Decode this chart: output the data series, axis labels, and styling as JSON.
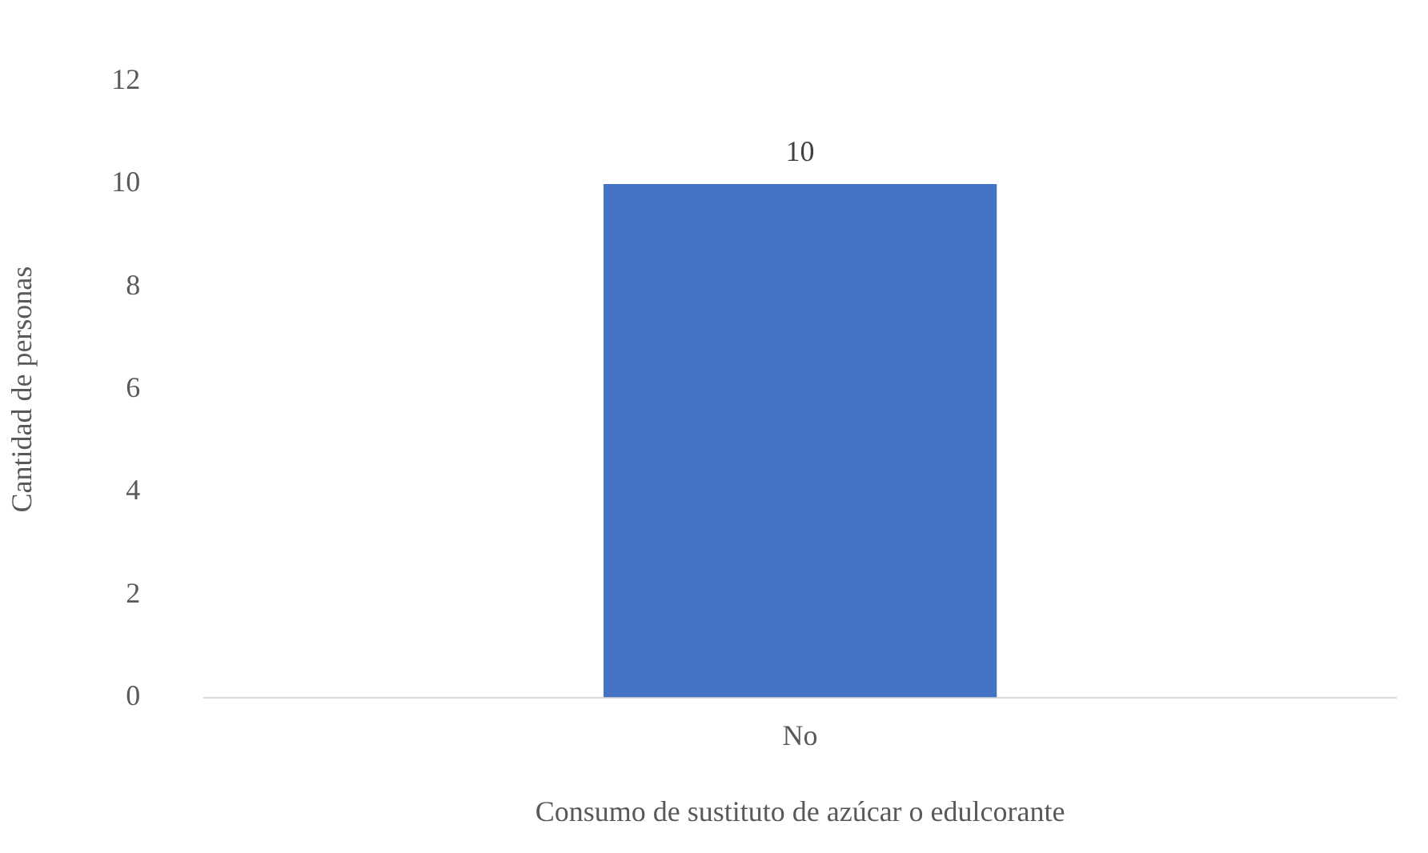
{
  "chart_data": {
    "type": "bar",
    "xlabel": "Consumo de sustituto de azúcar o edulcorante",
    "ylabel": "Cantidad de personas",
    "categories": [
      "No"
    ],
    "values": [
      10
    ],
    "color": "#4472c4",
    "ylim": [
      0,
      12
    ],
    "yticks": [
      0,
      2,
      4,
      6,
      8,
      10,
      12
    ],
    "grid": false,
    "legend": false,
    "data_labels": true
  }
}
